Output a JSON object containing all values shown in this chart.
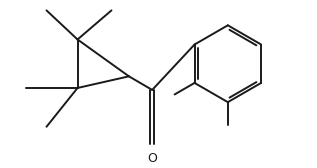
{
  "background_color": "#ffffff",
  "line_color": "#1a1a1a",
  "line_width": 1.4,
  "figsize": [
    3.17,
    1.68
  ],
  "dpi": 100,
  "xlim": [
    0,
    10
  ],
  "ylim": [
    0,
    5.3
  ]
}
